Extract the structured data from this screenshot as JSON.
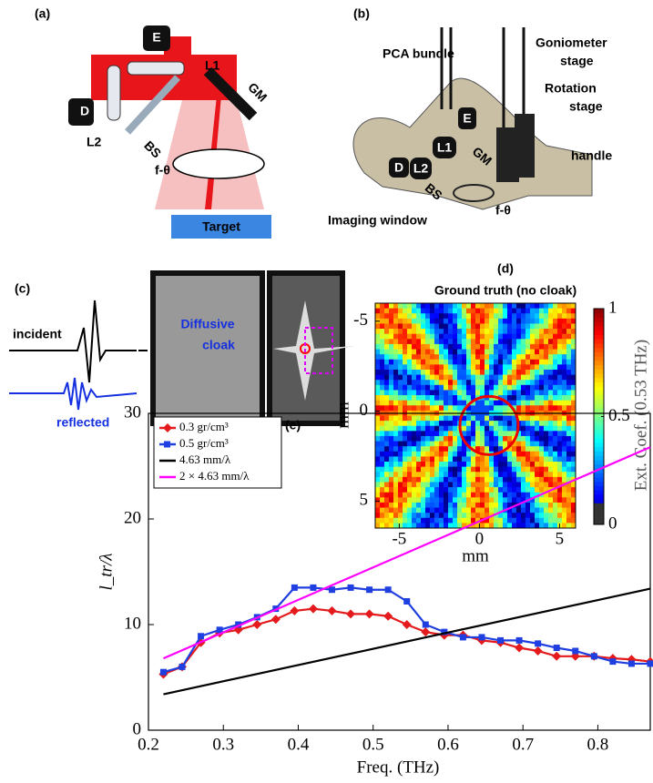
{
  "panels": {
    "a": {
      "label": "(a)",
      "E": "E",
      "L1": "L1",
      "D": "D",
      "L2": "L2",
      "BS": "BS",
      "GM": "GM",
      "ftheta": "f-θ",
      "target": "Target"
    },
    "b": {
      "label": "(b)",
      "pca": "PCA bundle",
      "goniometer": [
        "Goniometer",
        "stage"
      ],
      "rotation": [
        "Rotation",
        "stage"
      ],
      "handle": "handle",
      "E": "E",
      "L1": "L1",
      "GM": "GM",
      "D": "D",
      "L2": "L2",
      "BS": "BS",
      "window": "Imaging window",
      "ftheta": "f-θ"
    },
    "c": {
      "label": "(c)",
      "incident": "incident",
      "reflected": "reflected",
      "cloak": [
        "Diffusive",
        "cloak"
      ]
    },
    "d": {
      "label": "(d)",
      "title": "Ground truth (no cloak)",
      "xlabel": "mm",
      "ylabel": "mm",
      "cbar_label": "Ext. Coef. (0.53 THz)",
      "xlim": [
        -6.5,
        6
      ],
      "ylim": [
        -6,
        6.5
      ],
      "xticks": [
        -5,
        0,
        5
      ],
      "yticks": [
        -5,
        0,
        5
      ],
      "cbar_lim": [
        0,
        1
      ],
      "cbar_ticks": [
        0,
        0.5,
        1
      ]
    }
  },
  "chart_data": {
    "type": "line",
    "label": "(e)",
    "xlabel": "Freq. (THz)",
    "ylabel": "l_tr/λ",
    "xlim": [
      0.2,
      0.87
    ],
    "ylim": [
      0,
      30
    ],
    "xticks": [
      0.2,
      0.3,
      0.4,
      0.5,
      0.6,
      0.7,
      0.8
    ],
    "yticks": [
      0,
      10,
      20,
      30
    ],
    "x": [
      0.22,
      0.245,
      0.27,
      0.295,
      0.32,
      0.345,
      0.37,
      0.395,
      0.42,
      0.445,
      0.47,
      0.495,
      0.52,
      0.545,
      0.57,
      0.595,
      0.62,
      0.645,
      0.67,
      0.695,
      0.72,
      0.745,
      0.77,
      0.795,
      0.82,
      0.845,
      0.87
    ],
    "series": [
      {
        "name": "0.3 gr/cm³",
        "color": "#e41a1c",
        "marker": "diamond",
        "values": [
          5.3,
          6.0,
          8.3,
          9.2,
          9.5,
          10.0,
          10.5,
          11.3,
          11.5,
          11.3,
          11.0,
          11.0,
          10.8,
          10.0,
          9.3,
          9.0,
          9.0,
          8.5,
          8.3,
          7.8,
          7.5,
          7.0,
          7.0,
          7.0,
          6.8,
          6.7,
          6.5
        ]
      },
      {
        "name": "0.5 gr/cm³",
        "color": "#1f3fe0",
        "marker": "square",
        "values": [
          5.5,
          6.0,
          8.9,
          9.5,
          10.0,
          10.7,
          11.5,
          13.5,
          13.5,
          13.3,
          13.5,
          13.3,
          13.3,
          12.2,
          10.0,
          9.3,
          8.8,
          8.8,
          8.5,
          8.5,
          8.2,
          7.8,
          7.5,
          7.0,
          6.5,
          6.3,
          6.3
        ]
      },
      {
        "name": "4.63 mm/λ",
        "color": "#000000",
        "x": [
          0.22,
          0.87
        ],
        "values": [
          3.4,
          13.4
        ]
      },
      {
        "name": "2 × 4.63 mm/λ",
        "color": "#ff00ff",
        "x": [
          0.22,
          0.87
        ],
        "values": [
          6.8,
          26.8
        ]
      }
    ]
  }
}
